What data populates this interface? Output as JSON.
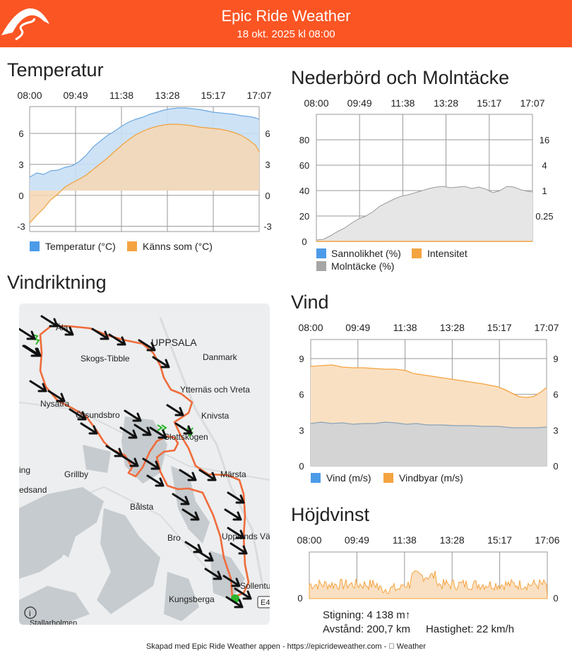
{
  "header": {
    "title": "Epic Ride Weather",
    "subtitle": "18 okt. 2025 kl 08:00",
    "brand_color": "#fb5523"
  },
  "sections": {
    "temperature": "Temperatur",
    "precip": "Nederbörd och Molntäcke",
    "wind_direction": "Vindriktning",
    "wind": "Vind",
    "elevation": "Höjdvinst"
  },
  "time_ticks": [
    "08:00",
    "09:49",
    "11:38",
    "13:28",
    "15:17",
    "17:07"
  ],
  "elevation_ticks": [
    "08:00",
    "09:49",
    "11:38",
    "13:28",
    "15:17",
    "17:06"
  ],
  "legends": {
    "temp": "Temperatur (°C)",
    "feels": "Känns som (°C)",
    "probability": "Sannolikhet (%)",
    "intensity": "Intensitet",
    "cloud": "Molntäcke (%)",
    "wind": "Vind (m/s)",
    "gust": "Vindbyar (m/s)"
  },
  "map_labels": {
    "uppsala": "UPPSALA",
    "danmark": "Danmark",
    "skogs_tibble": "Skogs-Tibble",
    "vreta": "Ytternäs och Vreta",
    "knivsta": "Knivsta",
    "nysatra": "Nysätra",
    "orsundsbro": "Örsundsbro",
    "slottskogen": "Slottskogen",
    "grillby": "Grillby",
    "ing": "ing",
    "edsand": "edsand",
    "marsta": "Märsta",
    "balsta": "Bålsta",
    "bro": "Bro",
    "upplands": "Upplands Vä",
    "sollentuna": "Sollentu",
    "kungsberga": "Kungsberga",
    "stallarholmen": "Stallarholmen",
    "road": "E4",
    "ala": "Äla"
  },
  "stats": {
    "climb": "Stigning: 4 138 m↑",
    "distance": "Avstånd: 200,7 km",
    "speed": "Hastighet: 22 km/h"
  },
  "footer": "Skapad med Epic Ride Weather appen - https://epicrideweather.com -  Weather",
  "colors": {
    "temp": "#4c9be8",
    "feels": "#f4a340",
    "cloud": "#a6a6a6",
    "route": "#f06b3a"
  },
  "chart_data": [
    {
      "type": "area",
      "title": "Temperatur",
      "x": [
        "08:00",
        "09:49",
        "11:38",
        "13:28",
        "15:17",
        "17:07"
      ],
      "ylim": [
        -3.5,
        9
      ],
      "y_ticks": [
        -3,
        0,
        3,
        6
      ],
      "series": [
        {
          "name": "Temperatur (°C)",
          "values": [
            1.4,
            2.2,
            4.6,
            7.2,
            7.6,
            6.3
          ]
        },
        {
          "name": "Känns som (°C)",
          "values": [
            -3.0,
            0.4,
            2.8,
            5.8,
            6.0,
            3.8
          ]
        }
      ]
    },
    {
      "type": "area",
      "title": "Nederbörd och Molntäcke",
      "x": [
        "08:00",
        "09:49",
        "11:38",
        "13:28",
        "15:17",
        "17:07"
      ],
      "ylim": [
        0,
        100
      ],
      "y_ticks": [
        0,
        20,
        40,
        60,
        80
      ],
      "y2_ticks": [
        "0.25",
        "1",
        "4",
        "16"
      ],
      "series": [
        {
          "name": "Molntäcke (%)",
          "values": [
            1,
            19,
            35,
            43,
            37,
            38
          ]
        },
        {
          "name": "Sannolikhet (%)",
          "values": [
            0,
            0,
            0,
            0,
            0,
            0
          ]
        },
        {
          "name": "Intensitet",
          "values": [
            0,
            0,
            0,
            0,
            0,
            0
          ]
        }
      ]
    },
    {
      "type": "area",
      "title": "Vind",
      "x": [
        "08:00",
        "09:49",
        "11:38",
        "13:28",
        "15:17",
        "17:07"
      ],
      "ylim": [
        0,
        10
      ],
      "y_ticks": [
        0,
        3,
        6,
        9
      ],
      "series": [
        {
          "name": "Vind (m/s)",
          "values": [
            3.4,
            3.3,
            3.5,
            3.2,
            3.1,
            3.1
          ]
        },
        {
          "name": "Vindbyar (m/s)",
          "values": [
            8.0,
            7.8,
            7.2,
            6.6,
            5.6,
            6.3
          ]
        }
      ]
    },
    {
      "type": "area",
      "title": "Höjdvinst",
      "x": [
        "08:00",
        "09:49",
        "11:38",
        "13:28",
        "15:17",
        "17:06"
      ],
      "series": [
        {
          "name": "Höjdvinst",
          "values": [
            12,
            18,
            8,
            28,
            16,
            10
          ]
        }
      ]
    }
  ]
}
